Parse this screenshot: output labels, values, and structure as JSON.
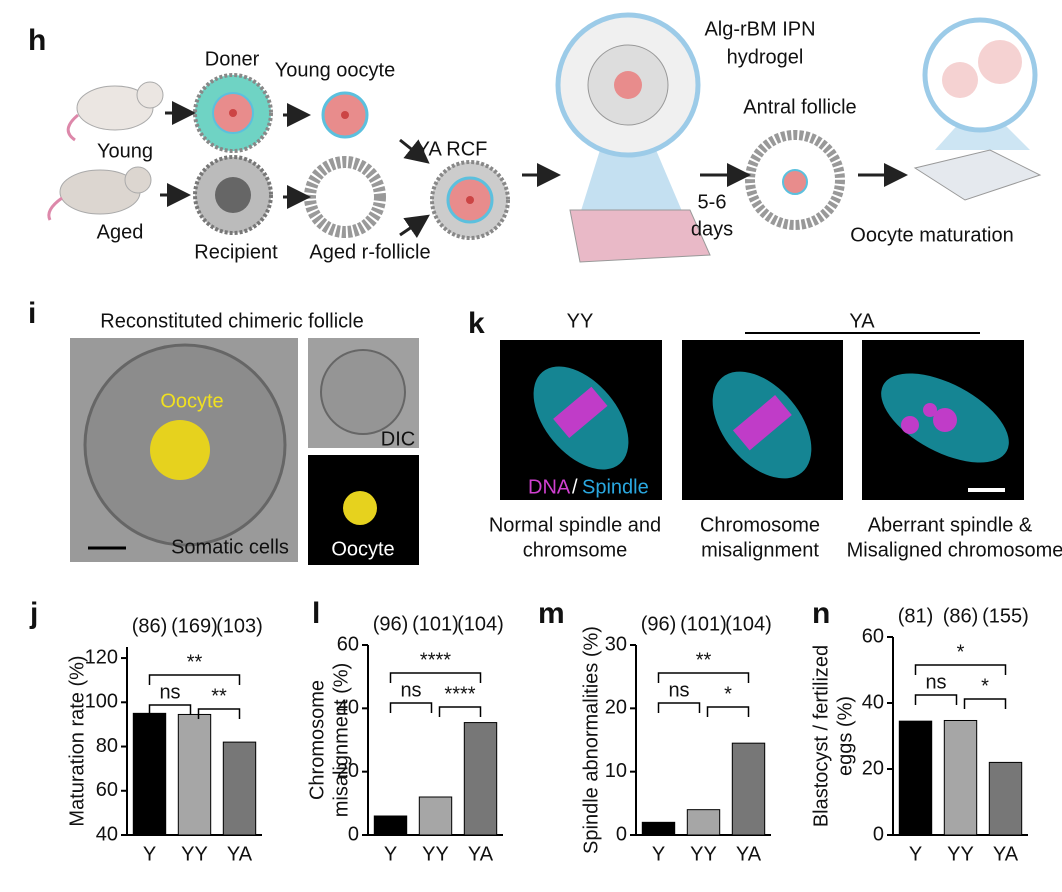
{
  "schematic": {
    "label": "h",
    "doner": "Doner",
    "young_oocyte": "Young oocyte",
    "young": "Young",
    "aged": "Aged",
    "recipient": "Recipient",
    "aged_r_follicle": "Aged r-follicle",
    "ya_rcf": "YA RCF",
    "hydrogel": [
      "Alg-rBM IPN",
      "hydrogel"
    ],
    "days": [
      "5-6",
      "days"
    ],
    "antral": "Antral follicle",
    "maturation": "Oocyte maturation"
  },
  "follicle_panel": {
    "label": "i",
    "title": "Reconstituted chimeric follicle",
    "oocyte": "Oocyte",
    "somatic": "Somatic cells",
    "dic": "DIC",
    "oocyte_small": "Oocyte"
  },
  "spindle_panel": {
    "label": "k",
    "yy": "YY",
    "ya": "YA",
    "dna": "DNA",
    "slash": "/",
    "spindle": "Spindle",
    "captions": [
      [
        "Normal spindle and",
        "chromsome"
      ],
      [
        "Chromosome",
        "misalignment"
      ],
      [
        "Aberrant spindle &",
        "Misaligned chromosome"
      ]
    ]
  },
  "chart_data": [
    {
      "type": "bar",
      "panel": "j",
      "ylabel": [
        "Maturation rate (%)"
      ],
      "categories": [
        "Y",
        "YY",
        "YA"
      ],
      "values": [
        95,
        94.5,
        82
      ],
      "colors": [
        "#000000",
        "#a6a6a6",
        "#777777"
      ],
      "n_labels": [
        "(86)",
        "(169)",
        "(103)"
      ],
      "significance": [
        "ns",
        "**",
        "**"
      ],
      "ylim": [
        40,
        125
      ],
      "yticks": [
        40,
        60,
        80,
        100,
        120
      ]
    },
    {
      "type": "bar",
      "panel": "l",
      "ylabel": [
        "Chromosome",
        "misalignment (%)"
      ],
      "categories": [
        "Y",
        "YY",
        "YA"
      ],
      "values": [
        6,
        12,
        35.5
      ],
      "colors": [
        "#000000",
        "#a6a6a6",
        "#777777"
      ],
      "n_labels": [
        "(96)",
        "(101)",
        "(104)"
      ],
      "significance": [
        "ns",
        "****",
        "****"
      ],
      "ylim": [
        0,
        60
      ],
      "yticks": [
        0,
        20,
        40,
        60
      ]
    },
    {
      "type": "bar",
      "panel": "m",
      "ylabel": [
        "Spindle abnormalities (%)"
      ],
      "categories": [
        "Y",
        "YY",
        "YA"
      ],
      "values": [
        2,
        4,
        14.5
      ],
      "colors": [
        "#000000",
        "#a6a6a6",
        "#777777"
      ],
      "n_labels": [
        "(96)",
        "(101)",
        "(104)"
      ],
      "significance": [
        "ns",
        "*",
        "**"
      ],
      "ylim": [
        0,
        30
      ],
      "yticks": [
        0,
        10,
        20,
        30
      ]
    },
    {
      "type": "bar",
      "panel": "n",
      "ylabel": [
        "Blastocyst / fertilized",
        "eggs (%)"
      ],
      "categories": [
        "Y",
        "YY",
        "YA"
      ],
      "values": [
        34.5,
        34.7,
        22
      ],
      "colors": [
        "#000000",
        "#a6a6a6",
        "#777777"
      ],
      "n_labels": [
        "(81)",
        "(86)",
        "(155)"
      ],
      "significance": [
        "ns",
        "*",
        "*"
      ],
      "ylim": [
        0,
        60
      ],
      "yticks": [
        0,
        20,
        40,
        60
      ]
    }
  ]
}
